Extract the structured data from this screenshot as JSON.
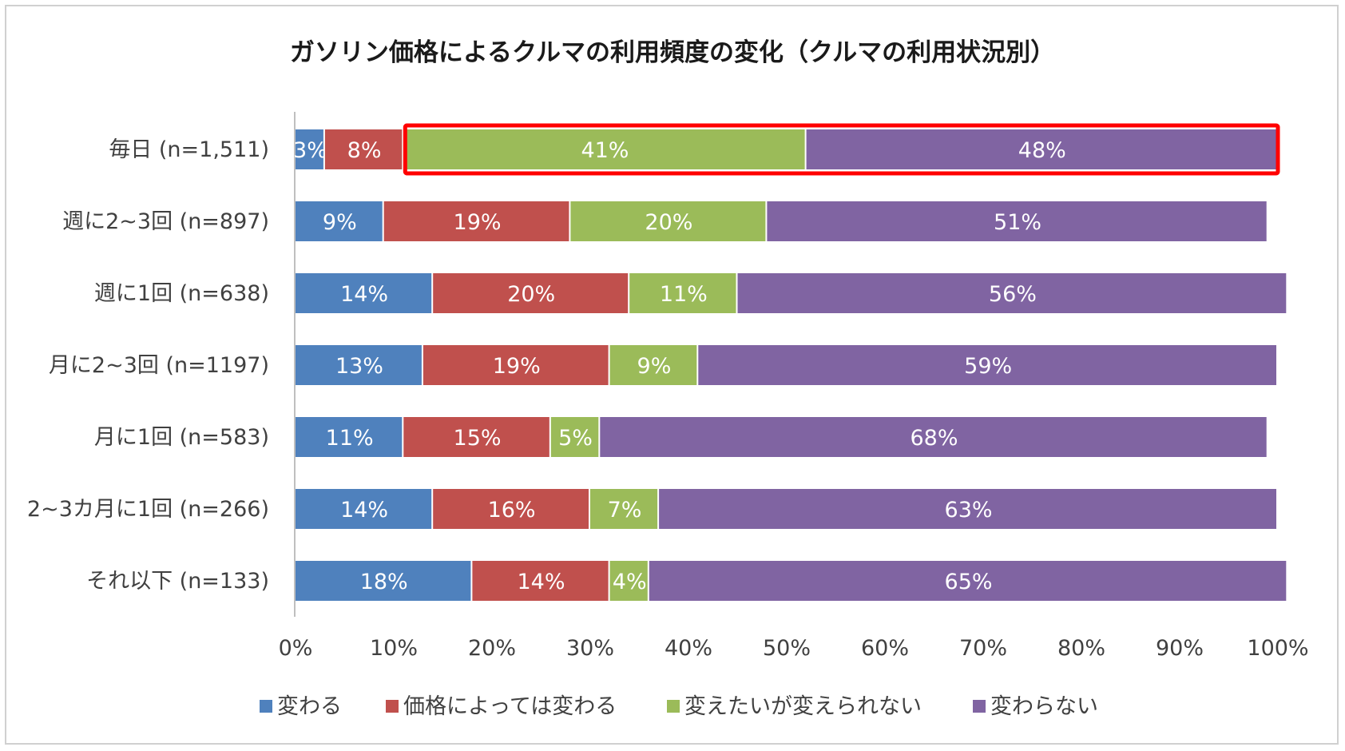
{
  "chart_data": {
    "type": "bar",
    "orientation": "horizontal",
    "stacked": "percent",
    "title": "ガソリン価格によるクルマの利用頻度の変化（クルマの利用状況別）",
    "categories": [
      "毎日 (n=1,511)",
      "週に2~3回 (n=897)",
      "週に1回 (n=638)",
      "月に2~3回 (n=1197)",
      "月に1回 (n=583)",
      "2~3カ月に1回 (n=266)",
      "それ以下 (n=133)"
    ],
    "series": [
      {
        "name": "変わる",
        "color": "#4f81bd",
        "values": [
          3,
          9,
          14,
          13,
          11,
          14,
          18
        ]
      },
      {
        "name": "価格によっては変わる",
        "color": "#c0504d",
        "values": [
          8,
          19,
          20,
          19,
          15,
          16,
          14
        ]
      },
      {
        "name": "変えたいが変えられない",
        "color": "#9bbb59",
        "values": [
          41,
          20,
          11,
          9,
          5,
          7,
          4
        ]
      },
      {
        "name": "変わらない",
        "color": "#8064a2",
        "values": [
          48,
          51,
          56,
          59,
          68,
          63,
          65
        ]
      }
    ],
    "xlim": [
      0,
      100
    ],
    "x_ticks": [
      "0%",
      "10%",
      "20%",
      "30%",
      "40%",
      "50%",
      "60%",
      "70%",
      "80%",
      "90%",
      "100%"
    ],
    "legend_position": "bottom",
    "highlight": {
      "category_index": 0,
      "series_from": 2,
      "series_to": 3,
      "color": "#ff0000"
    }
  }
}
